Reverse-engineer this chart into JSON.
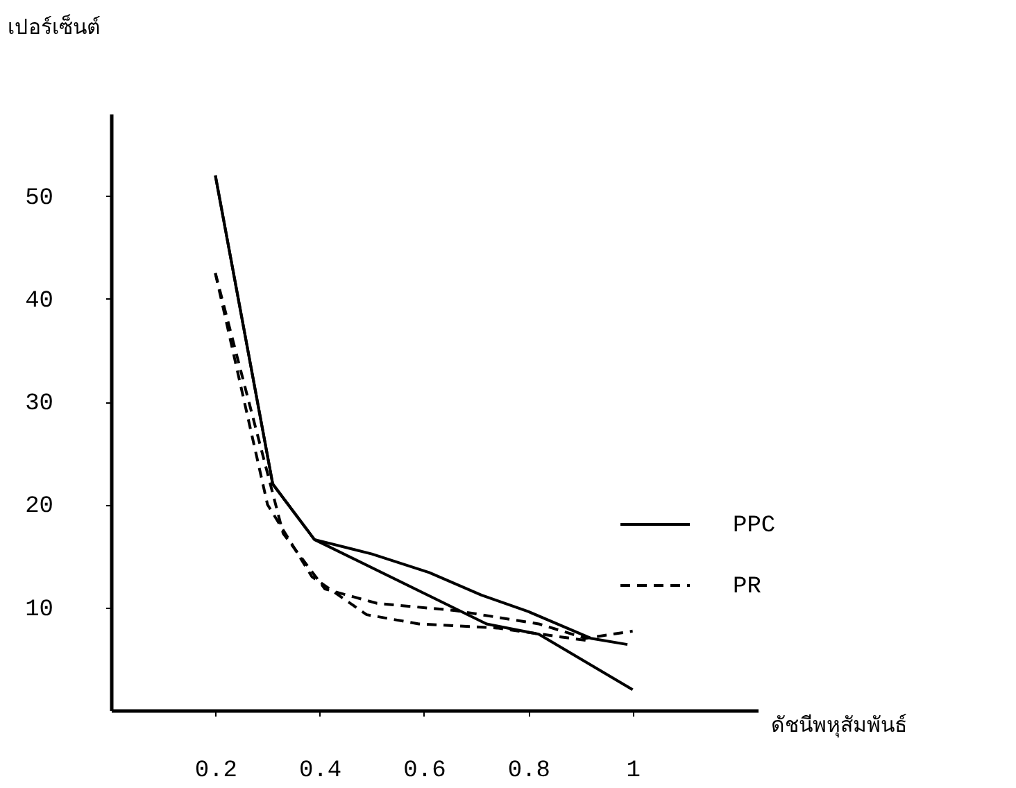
{
  "chart_data": {
    "type": "line",
    "xlabel": "ดัชนีพหุสัมพันธ์",
    "ylabel": "เปอร์เซ็นต์",
    "xlim": [
      0,
      1.24
    ],
    "ylim": [
      0,
      58
    ],
    "xticks": [
      0.2,
      0.4,
      0.6,
      0.8,
      {
        "value": 1,
        "label": "1"
      }
    ],
    "yticks": [
      10,
      20,
      30,
      40,
      50
    ],
    "grid": false,
    "legend": "right",
    "marker": "none",
    "series": [
      {
        "name": "PPC",
        "color": "#000000",
        "line_style": "solid",
        "x": [
          0.2,
          0.31,
          0.39,
          0.5,
          0.61,
          0.71,
          0.8,
          0.92,
          0.99
        ],
        "values": [
          52,
          22,
          16.6,
          15.2,
          13.4,
          11.2,
          9.6,
          7,
          6.4
        ]
      },
      {
        "color": "#000000",
        "line_style": "solid",
        "x": [
          0.2,
          0.31,
          0.39,
          0.72,
          0.82,
          1.0
        ],
        "values": [
          52,
          22,
          16.6,
          8.4,
          7.4,
          2
        ]
      },
      {
        "name": "PR",
        "color": "#000000",
        "line_style": "dashed",
        "x": [
          0.2,
          0.33,
          0.41,
          0.51,
          0.66,
          0.82,
          0.91,
          1.0
        ],
        "values": [
          42.5,
          17.2,
          11.8,
          10.4,
          9.7,
          8.4,
          7,
          7.7
        ]
      },
      {
        "color": "#000000",
        "line_style": "dashed",
        "x": [
          0.2,
          0.3,
          0.385,
          0.49,
          0.59,
          0.74,
          0.91
        ],
        "values": [
          42.5,
          20,
          13,
          9.3,
          8.4,
          8,
          6.8
        ]
      }
    ]
  }
}
